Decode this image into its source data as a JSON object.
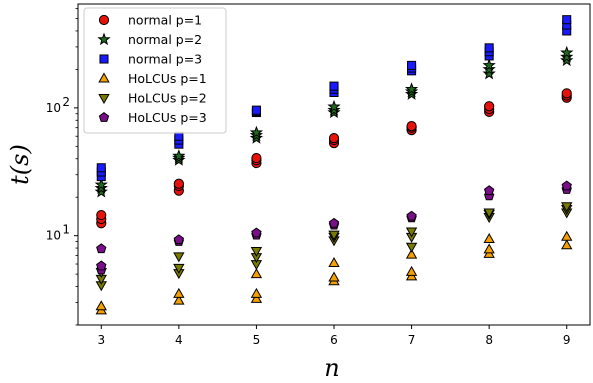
{
  "chart_data": {
    "type": "scatter",
    "title": "",
    "xlabel": "n",
    "ylabel": "t(s)",
    "xlim": [
      2.7,
      9.3
    ],
    "ylim": [
      2.0,
      650
    ],
    "yscale": "log",
    "x_ticks": [
      3,
      4,
      5,
      6,
      7,
      8,
      9
    ],
    "x_tick_labels": [
      "3",
      "4",
      "5",
      "6",
      "7",
      "8",
      "9"
    ],
    "y_ticks": [
      10,
      100
    ],
    "y_tick_labels_base": [
      "10",
      "10"
    ],
    "y_tick_labels_exp": [
      "1",
      "2"
    ],
    "legend_position": "top-left",
    "series": [
      {
        "name": "normal p=1",
        "marker": "circle",
        "color": "#e8120c",
        "points": [
          [
            3,
            12.5
          ],
          [
            3,
            13.5
          ],
          [
            3,
            14.5
          ],
          [
            4,
            22.5
          ],
          [
            4,
            24.5
          ],
          [
            4,
            25.5
          ],
          [
            5,
            37
          ],
          [
            5,
            39
          ],
          [
            5,
            40.5
          ],
          [
            6,
            53
          ],
          [
            6,
            56
          ],
          [
            6,
            58
          ],
          [
            7,
            67
          ],
          [
            7,
            70
          ],
          [
            7,
            72
          ],
          [
            8,
            93
          ],
          [
            8,
            98
          ],
          [
            8,
            103
          ],
          [
            9,
            120
          ],
          [
            9,
            125
          ],
          [
            9,
            130
          ]
        ]
      },
      {
        "name": "normal p=2",
        "marker": "star",
        "color": "#1e6b1e",
        "points": [
          [
            3,
            22
          ],
          [
            3,
            23.5
          ],
          [
            3,
            25
          ],
          [
            4,
            39
          ],
          [
            4,
            40.5
          ],
          [
            4,
            42
          ],
          [
            5,
            58
          ],
          [
            5,
            61
          ],
          [
            5,
            64
          ],
          [
            6,
            92
          ],
          [
            6,
            96
          ],
          [
            6,
            102
          ],
          [
            7,
            128
          ],
          [
            7,
            134
          ],
          [
            7,
            140
          ],
          [
            8,
            185
          ],
          [
            8,
            200
          ],
          [
            8,
            215
          ],
          [
            9,
            235
          ],
          [
            9,
            250
          ],
          [
            9,
            270
          ]
        ]
      },
      {
        "name": "normal p=3",
        "marker": "square",
        "color": "#1a1aff",
        "points": [
          [
            3,
            29
          ],
          [
            3,
            31.5
          ],
          [
            3,
            34
          ],
          [
            4,
            52
          ],
          [
            4,
            56
          ],
          [
            4,
            60
          ],
          [
            5,
            92
          ],
          [
            5,
            94
          ],
          [
            5,
            96
          ],
          [
            6,
            132
          ],
          [
            6,
            140
          ],
          [
            6,
            148
          ],
          [
            7,
            195
          ],
          [
            7,
            205
          ],
          [
            7,
            215
          ],
          [
            8,
            255
          ],
          [
            8,
            275
          ],
          [
            8,
            295
          ],
          [
            9,
            400
          ],
          [
            9,
            445
          ],
          [
            9,
            490
          ]
        ]
      },
      {
        "name": "HoLCUs p=1",
        "marker": "triangle-up",
        "color": "#f5a000",
        "points": [
          [
            3,
            2.6
          ],
          [
            3,
            2.8
          ],
          [
            4,
            3.1
          ],
          [
            4,
            3.5
          ],
          [
            5,
            3.2
          ],
          [
            5,
            3.5
          ],
          [
            5,
            5.0
          ],
          [
            6,
            4.4
          ],
          [
            6,
            4.7
          ],
          [
            6,
            6.1
          ],
          [
            7,
            4.8
          ],
          [
            7,
            5.2
          ],
          [
            7,
            7.1
          ],
          [
            8,
            7.2
          ],
          [
            8,
            7.8
          ],
          [
            8,
            9.4
          ],
          [
            9,
            8.4
          ],
          [
            9,
            9.8
          ]
        ]
      },
      {
        "name": "HoLCUs p=2",
        "marker": "triangle-down",
        "color": "#7a7a00",
        "points": [
          [
            3,
            4.1
          ],
          [
            3,
            4.6
          ],
          [
            3,
            5.2
          ],
          [
            4,
            5.1
          ],
          [
            4,
            5.6
          ],
          [
            4,
            6.9
          ],
          [
            5,
            6.0
          ],
          [
            5,
            6.8
          ],
          [
            5,
            7.6
          ],
          [
            6,
            9.2
          ],
          [
            6,
            9.8
          ],
          [
            6,
            10.2
          ],
          [
            7,
            8.2
          ],
          [
            7,
            9.8
          ],
          [
            7,
            10.8
          ],
          [
            8,
            14.0
          ],
          [
            8,
            14.8
          ],
          [
            8,
            15.2
          ],
          [
            9,
            15.2
          ],
          [
            9,
            16.2
          ],
          [
            9,
            17.0
          ]
        ]
      },
      {
        "name": "HoLCUs p=3",
        "marker": "pentagon",
        "color": "#7b0f8a",
        "points": [
          [
            3,
            5.4
          ],
          [
            3,
            5.8
          ],
          [
            3,
            7.9
          ],
          [
            4,
            9.0
          ],
          [
            4,
            9.3
          ],
          [
            5,
            10.1
          ],
          [
            5,
            10.5
          ],
          [
            6,
            12.1
          ],
          [
            6,
            12.5
          ],
          [
            7,
            13.8
          ],
          [
            7,
            14.2
          ],
          [
            8,
            20.5
          ],
          [
            8,
            22.5
          ],
          [
            9,
            23.0
          ],
          [
            9,
            24.5
          ]
        ]
      }
    ]
  }
}
